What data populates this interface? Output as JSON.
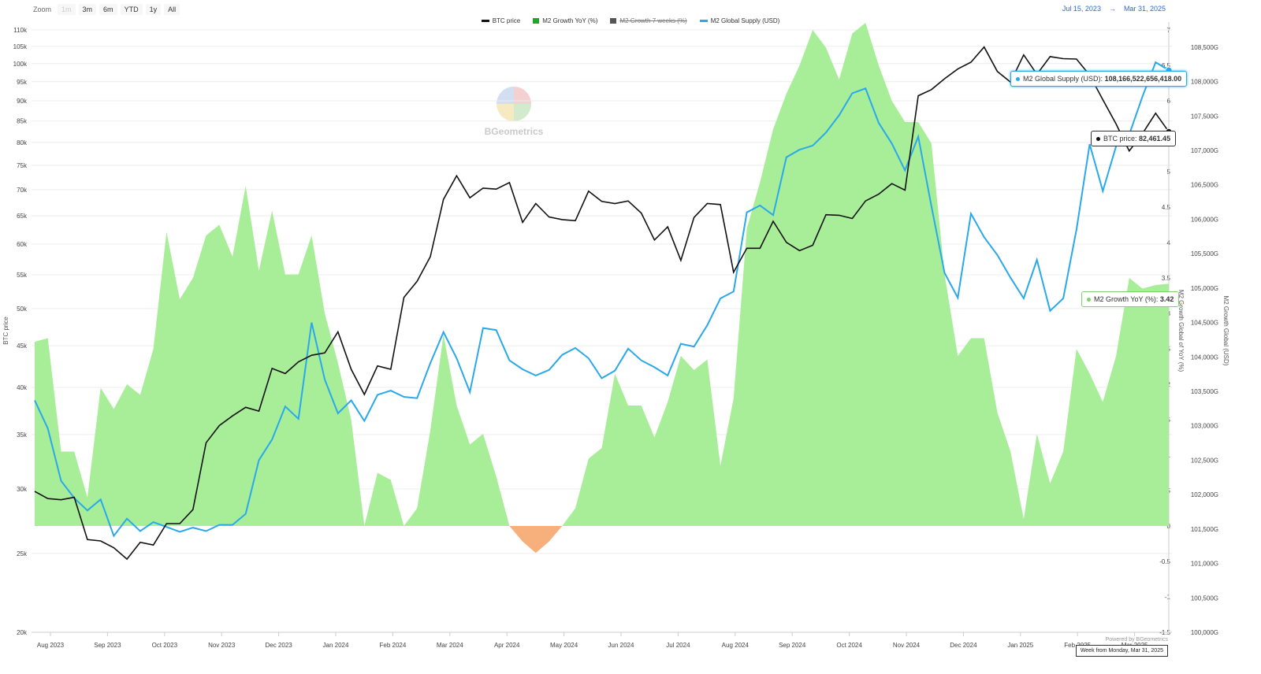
{
  "zoom": {
    "label": "Zoom",
    "buttons": [
      "1m",
      "3m",
      "6m",
      "YTD",
      "1y",
      "All"
    ],
    "disabled": [
      "1m"
    ]
  },
  "date_range": {
    "from": "Jul 15, 2023",
    "arrow": "→",
    "to": "Mar 31, 2025"
  },
  "legend": [
    {
      "label": "BTC price",
      "color": "#111111",
      "enabled": true,
      "type": "line"
    },
    {
      "label": "M2 Growth YoY (%)",
      "color": "#2ca02c",
      "enabled": true,
      "type": "area"
    },
    {
      "label": "M2 Growth 7 weeks (%)",
      "color": "#555555",
      "enabled": false,
      "type": "area"
    },
    {
      "label": "M2 Global Supply (USD)",
      "color": "#29a8ec",
      "enabled": true,
      "type": "line"
    }
  ],
  "watermark": "BGeometrics",
  "tooltips": {
    "m2_supply": {
      "label": "M2 Global Supply (USD):",
      "value": "108,166,522,656,418.00"
    },
    "btc": {
      "label": "BTC price:",
      "value": "82,461.45"
    },
    "m2_growth": {
      "label": "M2 Growth YoY (%):",
      "value": "3.42"
    }
  },
  "credit": "Powered by BGeometrics",
  "week_box": "Week from Monday, Mar 31, 2025",
  "colors": {
    "btc": "#111111",
    "m2": "#29a8ec",
    "growth_pos": "#a8ee98",
    "growth_neg": "#f7b07c",
    "grid": "#ececec"
  },
  "chart_data": {
    "type": "line",
    "x_labels": [
      "Aug 2023",
      "Sep 2023",
      "Oct 2023",
      "Nov 2023",
      "Dec 2023",
      "Jan 2024",
      "Feb 2024",
      "Mar 2024",
      "Apr 2024",
      "May 2024",
      "Jun 2024",
      "Jul 2024",
      "Aug 2024",
      "Sep 2024",
      "Oct 2024",
      "Nov 2024",
      "Dec 2024",
      "Jan 2025",
      "Feb 2025",
      "Mar 2025"
    ],
    "x_start": "2023-07-15",
    "x_step_weeks": 1,
    "axes": {
      "left": {
        "label": "BTC price",
        "scale": "log",
        "range": [
          20000,
          110000
        ],
        "ticks": [
          "20k",
          "25k",
          "30k",
          "35k",
          "40k",
          "45k",
          "50k",
          "55k",
          "60k",
          "65k",
          "70k",
          "75k",
          "80k",
          "85k",
          "90k",
          "95k",
          "100k",
          "105k",
          "110k"
        ]
      },
      "right_inner": {
        "label": "M2 Growth Global of YoY (%)",
        "range": [
          -1.5,
          7
        ],
        "ticks": [
          "-1.5",
          "-1",
          "-0.5",
          "0",
          "0.5",
          "1",
          "1.5",
          "2",
          "2.5",
          "3",
          "3.5",
          "4",
          "4.5",
          "5",
          "5.5",
          "6",
          "6.5",
          "7"
        ]
      },
      "right_outer": {
        "label": "M2 Growth Global (USD)",
        "range": [
          100000,
          108750
        ],
        "ticks": [
          "100,000G",
          "100,500G",
          "101,000G",
          "101,500G",
          "102,000G",
          "102,500G",
          "103,000G",
          "103,500G",
          "104,000G",
          "104,500G",
          "105,000G",
          "105,500G",
          "106,000G",
          "106,500G",
          "107,000G",
          "107,500G",
          "108,000G",
          "108,500G"
        ]
      }
    },
    "series": [
      {
        "name": "BTC price",
        "axis": "left",
        "values": [
          29800,
          29200,
          29100,
          29300,
          26000,
          25900,
          25400,
          24600,
          25800,
          25600,
          27200,
          27200,
          28300,
          34200,
          35900,
          36900,
          37800,
          37400,
          42200,
          41600,
          43000,
          43800,
          44100,
          46800,
          42100,
          39200,
          42500,
          42100,
          51600,
          54000,
          57900,
          68100,
          72800,
          68400,
          70300,
          70100,
          71400,
          63800,
          67300,
          64800,
          64300,
          64100,
          69700,
          67700,
          67300,
          67800,
          65500,
          60700,
          63000,
          57300,
          64700,
          67300,
          67100,
          55400,
          59300,
          59300,
          64000,
          60300,
          58900,
          59800,
          65200,
          65100,
          64500,
          67800,
          69100,
          71200,
          69900,
          91300,
          92900,
          95800,
          98500,
          100400,
          104800,
          97800,
          94900,
          102500,
          97000,
          102000,
          101400,
          101300,
          96800,
          90300,
          84300,
          78100,
          82000,
          86900,
          82461
        ]
      },
      {
        "name": "M2 Growth YoY (%)",
        "axis": "right_inner",
        "values": [
          2.6,
          2.65,
          1.05,
          1.05,
          0.4,
          1.95,
          1.65,
          2.0,
          1.85,
          2.5,
          4.15,
          3.2,
          3.5,
          4.1,
          4.25,
          3.8,
          4.8,
          3.6,
          4.45,
          3.55,
          3.55,
          4.1,
          3.0,
          2.3,
          1.5,
          0.0,
          0.75,
          0.65,
          0.0,
          0.25,
          1.35,
          2.7,
          1.7,
          1.15,
          1.3,
          0.7,
          0.0,
          -0.22,
          -0.38,
          -0.22,
          0.0,
          0.25,
          0.95,
          1.1,
          2.15,
          1.7,
          1.7,
          1.25,
          1.75,
          2.4,
          2.2,
          2.35,
          0.85,
          1.8,
          4.2,
          4.85,
          5.6,
          6.1,
          6.5,
          7.0,
          6.75,
          6.3,
          6.95,
          7.1,
          6.5,
          6.0,
          5.7,
          5.7,
          5.4,
          3.55,
          2.4,
          2.65,
          2.65,
          1.6,
          1.05,
          0.1,
          1.3,
          0.6,
          1.05,
          2.5,
          2.15,
          1.75,
          2.4,
          3.5,
          3.35,
          3.4,
          3.42
        ]
      },
      {
        "name": "M2 Global Supply (USD)",
        "axis": "right_outer",
        "values": [
          103370,
          102960,
          102200,
          101950,
          101770,
          101930,
          101400,
          101650,
          101470,
          101600,
          101530,
          101460,
          101520,
          101470,
          101560,
          101560,
          101720,
          102500,
          102800,
          103280,
          103100,
          104500,
          103670,
          103180,
          103370,
          103070,
          103450,
          103510,
          103420,
          103400,
          103910,
          104360,
          103980,
          103490,
          104420,
          104390,
          103950,
          103820,
          103730,
          103810,
          104030,
          104130,
          103980,
          103690,
          103800,
          104120,
          103950,
          103850,
          103730,
          104190,
          104150,
          104460,
          104850,
          104950,
          106100,
          106200,
          106060,
          106900,
          107010,
          107070,
          107260,
          107510,
          107830,
          107900,
          107400,
          107100,
          106710,
          107200,
          106190,
          105220,
          104860,
          106080,
          105740,
          105480,
          105150,
          104850,
          105410,
          104670,
          104850,
          105850,
          107090,
          106410,
          107060,
          107230,
          107780,
          108280,
          108166
        ]
      }
    ]
  }
}
